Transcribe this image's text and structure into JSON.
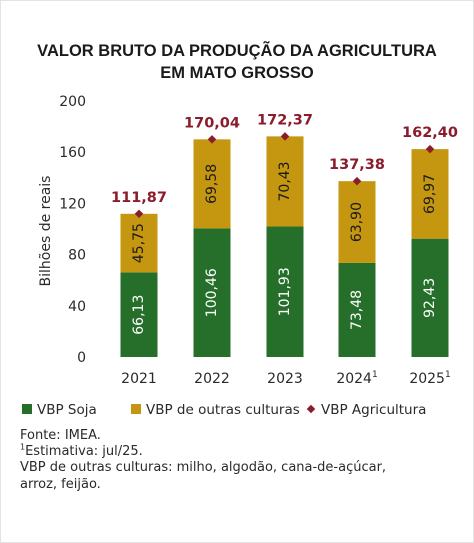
{
  "chart_data": {
    "type": "bar",
    "title_line1": "VALOR BRUTO DA PRODUÇÃO DA AGRICULTURA",
    "title_line2": "EM MATO GROSSO",
    "ylabel": "Bilhões de reais",
    "ylim": [
      0,
      200
    ],
    "yticks": [
      "0",
      "40",
      "80",
      "120",
      "160",
      "200"
    ],
    "categories": [
      {
        "label": "2021",
        "sup": ""
      },
      {
        "label": "2022",
        "sup": ""
      },
      {
        "label": "2023",
        "sup": ""
      },
      {
        "label": "2024",
        "sup": "1"
      },
      {
        "label": "2025",
        "sup": "1"
      }
    ],
    "series": [
      {
        "name": "VBP Soja",
        "color": "#256f2a",
        "values": [
          66.13,
          100.46,
          101.93,
          73.48,
          92.43
        ],
        "labels": [
          "66,13",
          "100,46",
          "101,93",
          "73,48",
          "92,43"
        ]
      },
      {
        "name": "VBP de outras culturas",
        "color": "#c5960f",
        "values": [
          45.75,
          69.58,
          70.43,
          63.9,
          69.97
        ],
        "labels": [
          "45,75",
          "69,58",
          "70,43",
          "63,90",
          "69,97"
        ]
      }
    ],
    "total_series": {
      "name": "VBP Agricultura",
      "color": "#8a1c2c",
      "values": [
        111.87,
        170.04,
        172.37,
        137.38,
        162.4
      ],
      "labels": [
        "111,87",
        "170,04",
        "172,37",
        "137,38",
        "162,40"
      ]
    },
    "grid": false,
    "legend_position": "bottom"
  },
  "notes": {
    "source": "Fonte: IMEA.",
    "estimate_sup": "1",
    "estimate": "Estimativa: jul/25.",
    "other_crops_line1": "VBP de outras culturas: milho, algodão, cana-de-açúcar,",
    "other_crops_line2": "arroz, feijão."
  }
}
